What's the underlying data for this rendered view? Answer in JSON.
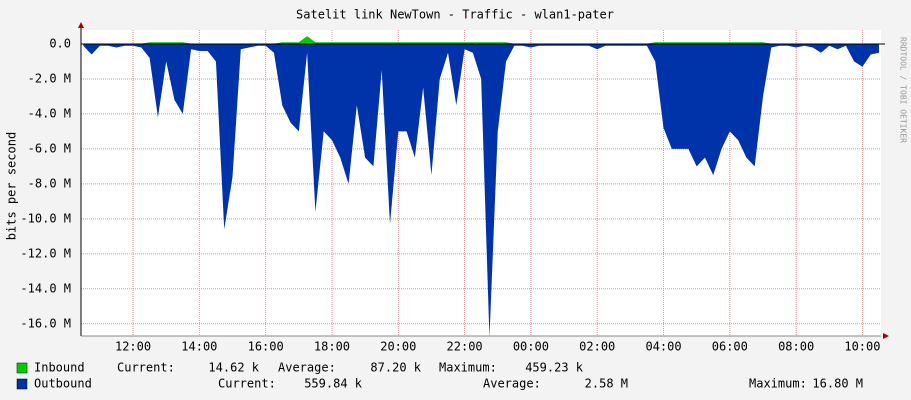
{
  "chart_data": {
    "type": "area",
    "title": "Satelit link NewTown - Traffic - wlan1-pater",
    "y_label": "bits per second",
    "watermark": "RRDTOOL / TOBI OETIKER",
    "x": [
      10.5,
      10.75,
      11,
      11.25,
      11.5,
      11.75,
      12,
      12.25,
      12.5,
      12.75,
      13,
      13.25,
      13.5,
      13.75,
      14,
      14.25,
      14.5,
      14.75,
      15,
      15.25,
      15.5,
      15.75,
      16,
      16.25,
      16.5,
      16.75,
      17,
      17.25,
      17.5,
      17.75,
      18,
      18.25,
      18.5,
      18.75,
      19,
      19.25,
      19.5,
      19.75,
      20,
      20.25,
      20.5,
      20.75,
      21,
      21.25,
      21.5,
      21.75,
      22,
      22.25,
      22.5,
      22.75,
      23,
      23.25,
      23.5,
      23.75,
      24,
      24.25,
      24.5,
      24.75,
      25,
      25.25,
      25.5,
      25.75,
      26,
      26.25,
      26.5,
      26.75,
      27,
      27.25,
      27.5,
      27.75,
      28,
      28.25,
      28.5,
      28.75,
      29,
      29.25,
      29.5,
      29.75,
      30,
      30.25,
      30.5,
      30.75,
      31,
      31.25,
      31.5,
      31.75,
      32,
      32.25,
      32.5,
      32.75,
      33,
      33.25,
      33.5,
      33.75,
      34,
      34.25,
      34.5
    ],
    "series": [
      {
        "name": "Inbound",
        "color": "#00cc00",
        "values": [
          20000,
          20000,
          20000,
          20000,
          20000,
          20000,
          20000,
          20000,
          100000,
          100000,
          100000,
          100000,
          100000,
          20000,
          20000,
          20000,
          20000,
          20000,
          20000,
          20000,
          20000,
          20000,
          20000,
          20000,
          100000,
          100000,
          100000,
          450000,
          100000,
          100000,
          100000,
          100000,
          100000,
          100000,
          100000,
          100000,
          100000,
          100000,
          100000,
          100000,
          100000,
          100000,
          100000,
          100000,
          100000,
          100000,
          100000,
          100000,
          100000,
          100000,
          100000,
          100000,
          20000,
          20000,
          20000,
          20000,
          20000,
          20000,
          20000,
          20000,
          20000,
          20000,
          20000,
          20000,
          20000,
          20000,
          20000,
          20000,
          20000,
          100000,
          100000,
          100000,
          100000,
          100000,
          100000,
          100000,
          100000,
          100000,
          100000,
          100000,
          100000,
          100000,
          100000,
          20000,
          20000,
          20000,
          20000,
          20000,
          20000,
          20000,
          20000,
          20000,
          20000,
          20000,
          20000,
          20000,
          20000
        ],
        "stats": [
          {
            "label": "Current:",
            "value": "14.62 k"
          },
          {
            "label": "Average:",
            "value": "87.20 k"
          },
          {
            "label": "Maximum:",
            "value": "459.23 k"
          }
        ]
      },
      {
        "name": "Outbound",
        "color": "#0033aa",
        "values": [
          -100000,
          -600000,
          -100000,
          -100000,
          -200000,
          -100000,
          -100000,
          -200000,
          -800000,
          -4200000,
          -1000000,
          -3200000,
          -4000000,
          -300000,
          -400000,
          -400000,
          -1000000,
          -10600000,
          -7600000,
          -300000,
          -200000,
          -100000,
          -100000,
          -500000,
          -3500000,
          -4500000,
          -5000000,
          -500000,
          -9600000,
          -5000000,
          -5500000,
          -6500000,
          -8000000,
          -3500000,
          -6500000,
          -7000000,
          -1500000,
          -10300000,
          -5000000,
          -5000000,
          -6500000,
          -2500000,
          -7500000,
          -2000000,
          -500000,
          -3500000,
          -300000,
          -500000,
          -2000000,
          -16800000,
          -5000000,
          -1000000,
          -100000,
          -100000,
          -200000,
          -100000,
          -100000,
          -100000,
          -100000,
          -100000,
          -100000,
          -100000,
          -300000,
          -100000,
          -100000,
          -100000,
          -100000,
          -100000,
          -100000,
          -1000000,
          -4800000,
          -6000000,
          -6000000,
          -6000000,
          -7000000,
          -6500000,
          -7500000,
          -6000000,
          -5000000,
          -5500000,
          -6500000,
          -7000000,
          -3000000,
          -200000,
          -100000,
          -100000,
          -200000,
          -100000,
          -200000,
          -500000,
          -100000,
          -300000,
          -100000,
          -1000000,
          -1300000,
          -600000,
          -500000
        ],
        "stats": [
          {
            "label": "Current:",
            "value": "559.84 k"
          },
          {
            "label": "Average:",
            "value": "2.58 M"
          },
          {
            "label": "Maximum:",
            "value": "16.80 M"
          }
        ]
      }
    ],
    "xlim": [
      10.43,
      34.56
    ],
    "xticks": [
      {
        "value": 12,
        "label": "12:00"
      },
      {
        "value": 14,
        "label": "14:00"
      },
      {
        "value": 16,
        "label": "16:00"
      },
      {
        "value": 18,
        "label": "18:00"
      },
      {
        "value": 20,
        "label": "20:00"
      },
      {
        "value": 22,
        "label": "22:00"
      },
      {
        "value": 24,
        "label": "00:00"
      },
      {
        "value": 26,
        "label": "02:00"
      },
      {
        "value": 28,
        "label": "04:00"
      },
      {
        "value": 30,
        "label": "06:00"
      },
      {
        "value": 32,
        "label": "08:00"
      },
      {
        "value": 34,
        "label": "10:00"
      }
    ],
    "ylim": [
      -16700000,
      800000
    ],
    "yticks": [
      {
        "value": 0,
        "label": "0.0"
      },
      {
        "value": -2000000,
        "label": "-2.0 M"
      },
      {
        "value": -4000000,
        "label": "-4.0 M"
      },
      {
        "value": -6000000,
        "label": "-6.0 M"
      },
      {
        "value": -8000000,
        "label": "-8.0 M"
      },
      {
        "value": -10000000,
        "label": "-10.0 M"
      },
      {
        "value": -12000000,
        "label": "-12.0 M"
      },
      {
        "value": -14000000,
        "label": "-14.0 M"
      },
      {
        "value": -16000000,
        "label": "-16.0 M"
      }
    ],
    "grid": true
  }
}
